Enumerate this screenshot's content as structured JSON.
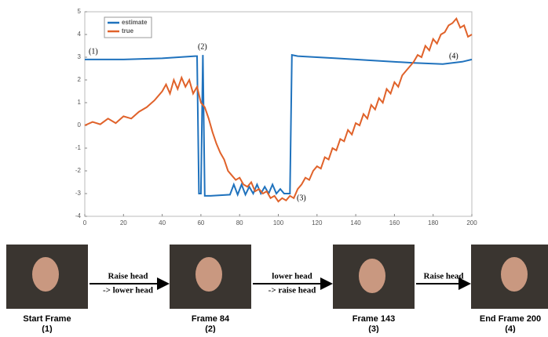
{
  "chart_data": {
    "type": "line",
    "xlim": [
      0,
      200
    ],
    "ylim": [
      -4,
      5
    ],
    "xticks": [
      0,
      20,
      40,
      60,
      80,
      100,
      120,
      140,
      160,
      180,
      200
    ],
    "yticks": [
      -4,
      -3,
      -2,
      -1,
      0,
      1,
      2,
      3,
      4,
      5
    ],
    "legend": "upper-left",
    "series": [
      {
        "name": "estimate",
        "color": "#1f72bd",
        "x": [
          0,
          20,
          40,
          57,
          58,
          59,
          60,
          61,
          62,
          65,
          75,
          77,
          79,
          81,
          83,
          85,
          87,
          89,
          91,
          93,
          95,
          97,
          99,
          101,
          103,
          106,
          107,
          110,
          130,
          150,
          170,
          185,
          195,
          200
        ],
        "values": [
          2.9,
          2.9,
          2.95,
          3.05,
          3.05,
          -3.0,
          -3.0,
          3.1,
          -3.1,
          -3.1,
          -3.05,
          -2.6,
          -3.05,
          -2.6,
          -3.05,
          -2.7,
          -3.0,
          -2.6,
          -3.0,
          -2.7,
          -3.0,
          -2.6,
          -3.0,
          -2.8,
          -3.0,
          -3.0,
          3.1,
          3.05,
          2.95,
          2.85,
          2.75,
          2.7,
          2.8,
          2.9
        ]
      },
      {
        "name": "true",
        "color": "#e0622a",
        "x": [
          0,
          4,
          8,
          12,
          16,
          20,
          24,
          28,
          32,
          36,
          40,
          42,
          44,
          46,
          48,
          50,
          52,
          54,
          56,
          58,
          60,
          62,
          64,
          66,
          68,
          70,
          72,
          74,
          76,
          78,
          80,
          82,
          84,
          86,
          88,
          90,
          92,
          94,
          96,
          98,
          100,
          102,
          104,
          106,
          108,
          110,
          112,
          114,
          116,
          118,
          120,
          122,
          124,
          126,
          128,
          130,
          132,
          134,
          136,
          138,
          140,
          142,
          144,
          146,
          148,
          150,
          152,
          154,
          156,
          158,
          160,
          162,
          164,
          166,
          168,
          170,
          172,
          174,
          176,
          178,
          180,
          182,
          184,
          186,
          188,
          190,
          192,
          194,
          196,
          198,
          200
        ],
        "values": [
          0,
          0.15,
          0.05,
          0.3,
          0.1,
          0.4,
          0.3,
          0.6,
          0.8,
          1.1,
          1.5,
          1.8,
          1.4,
          2.0,
          1.6,
          2.1,
          1.7,
          2.0,
          1.4,
          1.7,
          1.0,
          0.8,
          0.3,
          -0.3,
          -0.8,
          -1.2,
          -1.5,
          -2.0,
          -2.2,
          -2.4,
          -2.3,
          -2.6,
          -2.7,
          -2.5,
          -2.9,
          -2.8,
          -3.0,
          -2.9,
          -3.2,
          -3.1,
          -3.35,
          -3.2,
          -3.3,
          -3.1,
          -3.2,
          -2.8,
          -2.6,
          -2.3,
          -2.4,
          -2.0,
          -1.8,
          -1.9,
          -1.4,
          -1.5,
          -1.0,
          -1.1,
          -0.6,
          -0.7,
          -0.2,
          -0.4,
          0.1,
          0.0,
          0.5,
          0.3,
          0.9,
          0.7,
          1.2,
          1.0,
          1.6,
          1.4,
          1.9,
          1.7,
          2.2,
          2.4,
          2.6,
          2.8,
          3.1,
          3.0,
          3.5,
          3.3,
          3.8,
          3.6,
          4.0,
          4.1,
          4.4,
          4.5,
          4.7,
          4.3,
          4.4,
          3.9,
          4.0
        ]
      }
    ],
    "annotations": [
      "(1)",
      "(2)",
      "(3)",
      "(4)"
    ]
  },
  "frames": [
    {
      "caption": "Start Frame",
      "number": "(1)"
    },
    {
      "caption": "Frame 84",
      "number": "(2)"
    },
    {
      "caption": "Frame 143",
      "number": "(3)"
    },
    {
      "caption": "End Frame 200",
      "number": "(4)"
    }
  ],
  "arrows": [
    {
      "lines": [
        "Raise head",
        "-> lower head"
      ]
    },
    {
      "lines": [
        "lower head",
        "-> raise head"
      ]
    },
    {
      "lines": [
        "Raise head"
      ]
    }
  ]
}
